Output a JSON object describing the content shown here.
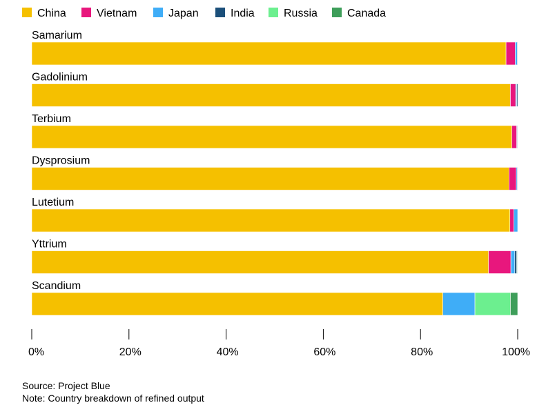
{
  "chart_data": {
    "type": "bar",
    "orientation": "horizontal",
    "stacked": true,
    "categories": [
      "Samarium",
      "Gadolinium",
      "Terbium",
      "Dysprosium",
      "Lutetium",
      "Yttrium",
      "Scandium"
    ],
    "series": [
      {
        "name": "China",
        "color": "#f5c000",
        "values": [
          97.6,
          98.5,
          98.8,
          98.2,
          98.4,
          94.0,
          84.6
        ]
      },
      {
        "name": "Vietnam",
        "color": "#e8177d",
        "values": [
          1.9,
          1.1,
          1.0,
          1.5,
          0.8,
          4.6,
          0.0
        ]
      },
      {
        "name": "Japan",
        "color": "#3fadf7",
        "values": [
          0.4,
          0.2,
          0.1,
          0.2,
          0.8,
          0.8,
          6.6
        ]
      },
      {
        "name": "India",
        "color": "#1b4f7a",
        "values": [
          0.1,
          0.2,
          0.1,
          0.1,
          0.0,
          0.4,
          0.0
        ]
      },
      {
        "name": "Russia",
        "color": "#6cef8f",
        "values": [
          0.0,
          0.0,
          0.0,
          0.0,
          0.0,
          0.1,
          7.3
        ]
      },
      {
        "name": "Canada",
        "color": "#3e9e5a",
        "values": [
          0.0,
          0.0,
          0.0,
          0.0,
          0.0,
          0.1,
          1.5
        ]
      }
    ],
    "xlim": [
      0,
      100
    ],
    "xticks": [
      "0%",
      "20%",
      "40%",
      "60%",
      "80%",
      "100%"
    ],
    "tick_values": [
      0,
      20,
      40,
      60,
      80,
      100
    ],
    "legend_position": "top-left",
    "grid": false
  },
  "footer": {
    "source": "Source: Project Blue",
    "note": "Note: Country breakdown of refined output"
  }
}
